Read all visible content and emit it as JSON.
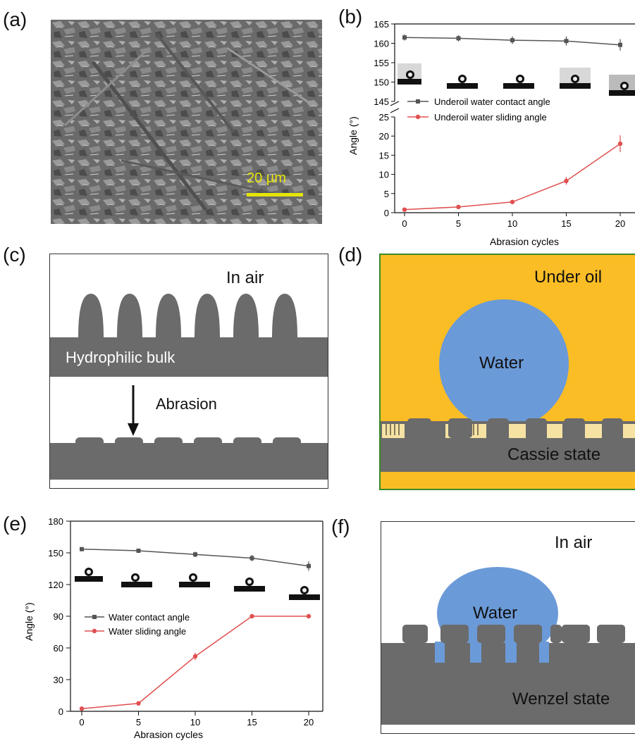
{
  "panels": {
    "a": {
      "label": "(a)",
      "scale_bar": "20 µm"
    },
    "b": {
      "label": "(b)"
    },
    "c": {
      "label": "(c)",
      "env": "In air",
      "top_text": "Hydrophilic bulk",
      "arrow_text": "Abrasion"
    },
    "d": {
      "label": "(d)",
      "env": "Under oil",
      "drop": "Water",
      "state": "Cassie state"
    },
    "e": {
      "label": "(e)"
    },
    "f": {
      "label": "(f)",
      "env": "In air",
      "drop": "Water",
      "state": "Wenzel state"
    }
  },
  "chart_data": [
    {
      "type": "line",
      "panel": "b",
      "xlabel": "Abrasion cycles",
      "ylabel": "Angle (°)",
      "x": [
        0,
        5,
        10,
        15,
        20
      ],
      "x_ticks": [
        "0",
        "5",
        "10",
        "15",
        "20"
      ],
      "axis_break": true,
      "upper_ylim": [
        145,
        165
      ],
      "upper_ticks": [
        "145",
        "150",
        "155",
        "160",
        "165"
      ],
      "lower_ylim": [
        0,
        25
      ],
      "lower_ticks": [
        "0",
        "5",
        "10",
        "15",
        "20",
        "25"
      ],
      "series": [
        {
          "name": "Underoil water contact angle",
          "values": [
            161.5,
            161.3,
            160.8,
            160.6,
            159.6
          ],
          "err": [
            0.8,
            0.8,
            1.0,
            1.2,
            1.5
          ],
          "color": "#555555"
        },
        {
          "name": "Underoil water sliding angle",
          "values": [
            0.8,
            1.5,
            2.8,
            8.3,
            18.0
          ],
          "err": [
            0.2,
            0.3,
            0.5,
            1.0,
            2.2
          ],
          "color": "#e05050"
        }
      ]
    },
    {
      "type": "line",
      "panel": "e",
      "xlabel": "Abrasion cycles",
      "ylabel": "Angle (°)",
      "x": [
        0,
        5,
        10,
        15,
        20
      ],
      "x_ticks": [
        "0",
        "5",
        "10",
        "15",
        "20"
      ],
      "ylim": [
        0,
        180
      ],
      "y_ticks": [
        "0",
        "30",
        "60",
        "90",
        "120",
        "150",
        "180"
      ],
      "series": [
        {
          "name": "Water contact angle",
          "values": [
            153.5,
            152,
            148.5,
            145,
            137.5
          ],
          "err": [
            1.0,
            1.2,
            2.5,
            3.0,
            4.5
          ],
          "color": "#555555"
        },
        {
          "name": "Water sliding angle",
          "values": [
            2.5,
            7.5,
            52,
            90,
            90
          ],
          "err": [
            0.5,
            1.0,
            3.5,
            0,
            0
          ],
          "color": "#e05050"
        }
      ]
    }
  ],
  "colors": {
    "oil": "#fbbd25",
    "water": "#6b9ad8",
    "solid": "#6b6b6b",
    "green_border": "#3a8a2a",
    "scale": "#e4e40a"
  }
}
